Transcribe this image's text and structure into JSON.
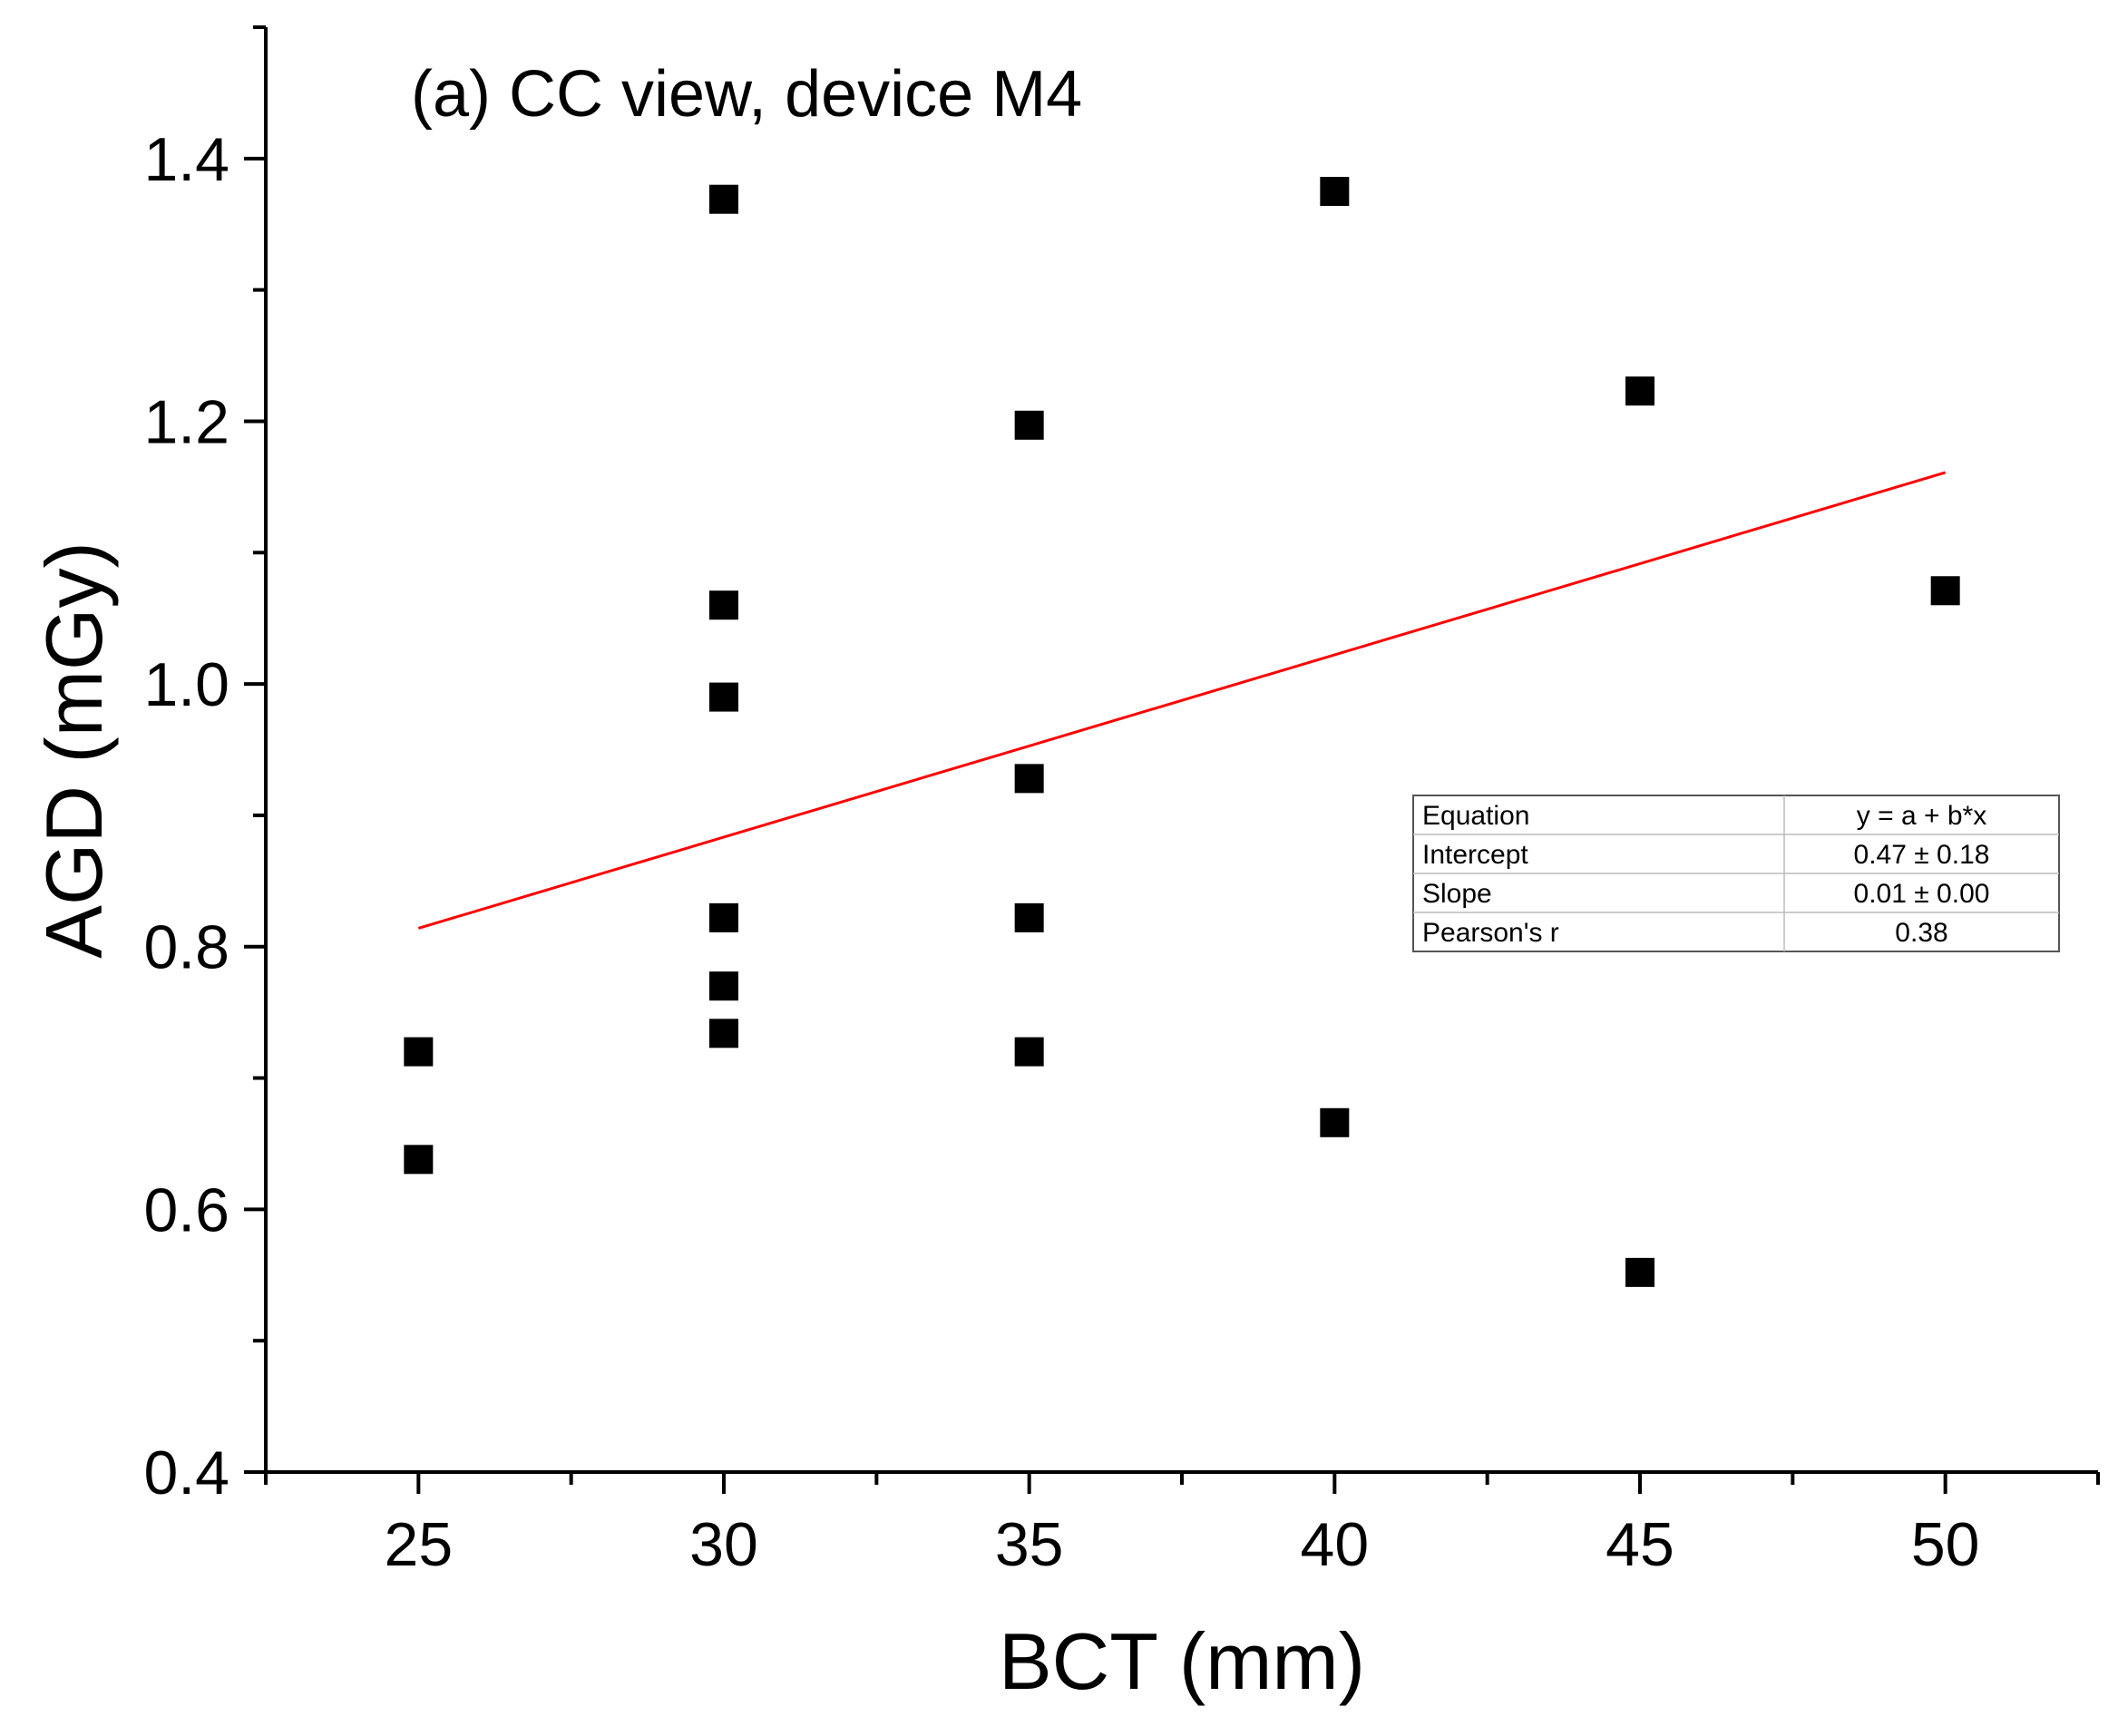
{
  "chart_data": {
    "type": "scatter",
    "title": "(a) CC view,  device M4",
    "xlabel": "BCT (mm)",
    "ylabel": "AGD (mGy)",
    "xlim": [
      22.5,
      52.5
    ],
    "ylim": [
      0.4,
      1.5
    ],
    "xticks": [
      "25",
      "30",
      "35",
      "40",
      "45",
      "50"
    ],
    "yticks": [
      "0.4",
      "0.6",
      "0.8",
      "1.0",
      "1.2",
      "1.4"
    ],
    "colors": {
      "points": "#000000",
      "fit_line": "#ff0000"
    },
    "series": [
      {
        "name": "AGD",
        "points": [
          {
            "x": 25,
            "y": 0.72
          },
          {
            "x": 25,
            "y": 0.638
          },
          {
            "x": 30,
            "y": 1.369
          },
          {
            "x": 30,
            "y": 1.06
          },
          {
            "x": 30,
            "y": 0.99
          },
          {
            "x": 30,
            "y": 0.822
          },
          {
            "x": 30,
            "y": 0.77
          },
          {
            "x": 30,
            "y": 0.734
          },
          {
            "x": 35,
            "y": 1.197
          },
          {
            "x": 35,
            "y": 0.928
          },
          {
            "x": 35,
            "y": 0.822
          },
          {
            "x": 35,
            "y": 0.72
          },
          {
            "x": 40,
            "y": 1.375
          },
          {
            "x": 40,
            "y": 0.666
          },
          {
            "x": 45,
            "y": 1.223
          },
          {
            "x": 45,
            "y": 0.552
          },
          {
            "x": 50,
            "y": 1.071
          }
        ]
      }
    ],
    "fit_line": {
      "x": [
        25,
        50
      ],
      "y": [
        0.814,
        1.161
      ]
    },
    "fit_table": [
      {
        "label": "Equation",
        "value": "y = a + b*x"
      },
      {
        "label": "Intercept",
        "value": "0.47 ± 0.18"
      },
      {
        "label": "Slope",
        "value": "0.01 ± 0.00"
      },
      {
        "label": "Pearson's r",
        "value": "0.38"
      }
    ]
  }
}
